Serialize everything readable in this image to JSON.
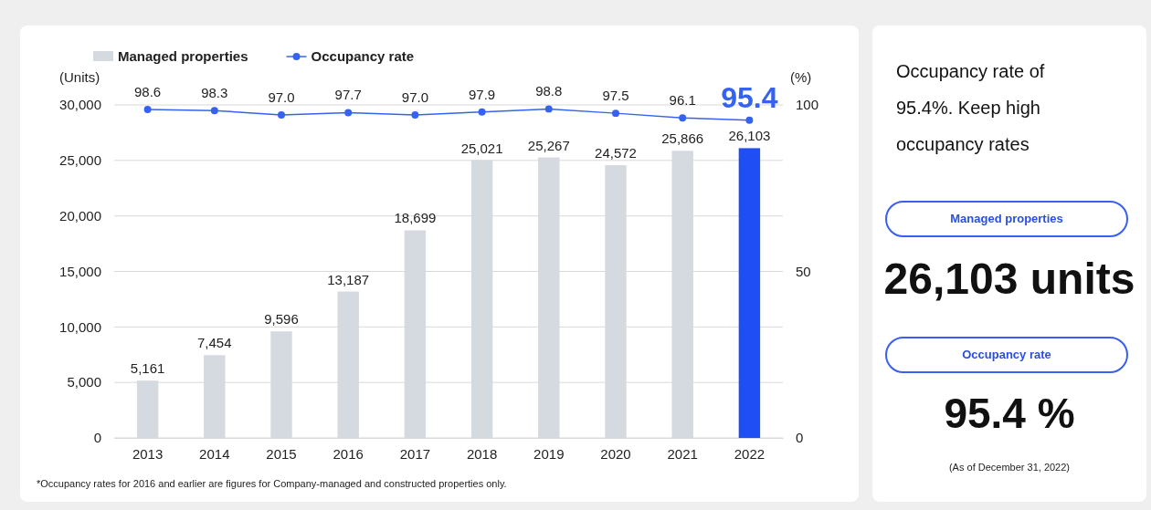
{
  "chart_data": [
    {
      "type": "bar",
      "legend": "top left",
      "grid": "y",
      "ylabel": "(Units)",
      "y2label": "(%)",
      "categories": [
        "2013",
        "2014",
        "2015",
        "2016",
        "2017",
        "2018",
        "2019",
        "2020",
        "2021",
        "2022"
      ],
      "ylim": [
        0,
        30000
      ],
      "yticks": [
        0,
        {
          "value": 5000,
          "label": "5,000"
        },
        {
          "value": 10000,
          "label": "10,000"
        },
        {
          "value": 15000,
          "label": "15,000"
        },
        {
          "value": 20000,
          "label": "20,000"
        },
        {
          "value": 25000,
          "label": "25,000"
        },
        {
          "value": 30000,
          "label": "30,000"
        }
      ],
      "y2lim": [
        0,
        100
      ],
      "y2ticks": [
        0,
        50,
        100
      ],
      "series": [
        {
          "name": "Managed properties",
          "type": "bar",
          "color": "#d5d9e0",
          "colors": [
            "#d5d9e0",
            "#d5d9e0",
            "#d5d9e0",
            "#d5d9e0",
            "#d5d9e0",
            "#d5d9e0",
            "#d5d9e0",
            "#d5d9e0",
            "#d5d9e0",
            "#1f4ef5"
          ],
          "values": [
            5161,
            7454,
            9596,
            13187,
            18699,
            25021,
            25267,
            24572,
            25866,
            26103
          ],
          "value_labels": [
            "5,161",
            "7,454",
            "9,596",
            "13,187",
            "18,699",
            "25,021",
            "25,267",
            "24,572",
            "25,866",
            "26,103"
          ]
        },
        {
          "name": "Occupancy rate",
          "type": "line",
          "axis": "y2",
          "color": "#3563f0",
          "marker": "circle",
          "values": [
            98.6,
            98.3,
            97.0,
            97.7,
            97.0,
            97.9,
            98.8,
            97.5,
            96.1,
            95.4
          ],
          "value_labels": [
            "98.6",
            "98.3",
            "97.0",
            "97.7",
            "97.0",
            "97.9",
            "98.8",
            "97.5",
            "96.1",
            "95.4"
          ]
        }
      ],
      "annotations": [
        "*Occupancy rates for 2016 and earlier are figures for Company-managed and constructed properties only."
      ]
    },
    {
      "type": "other",
      "title": "Occupancy rate of 95.4%. Keep high occupancy rates",
      "annotations": [
        "Managed properties",
        "26,103 units",
        "Occupancy rate",
        "95.4 %",
        "(As of December 31, 2022)"
      ]
    }
  ]
}
